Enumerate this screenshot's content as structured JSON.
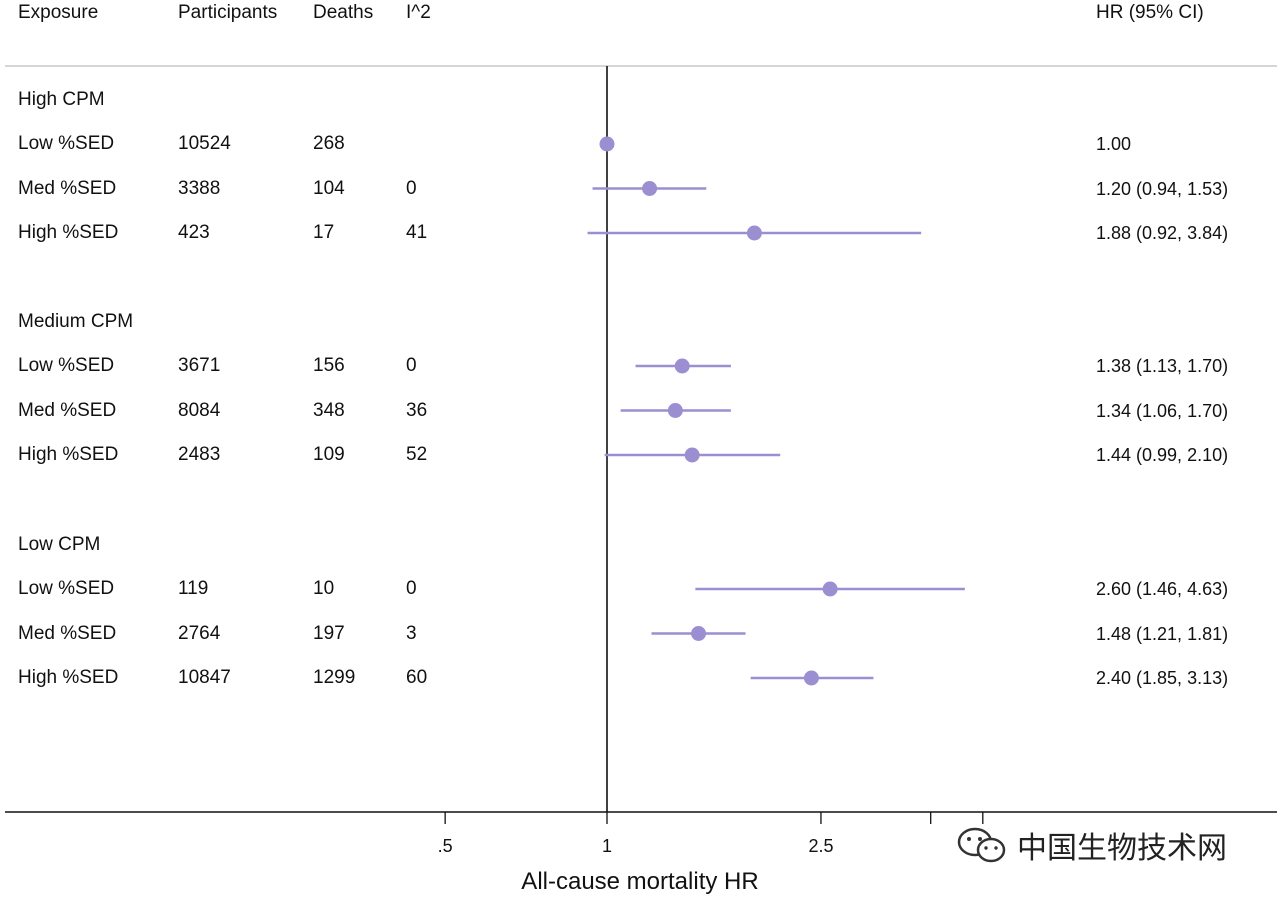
{
  "columns": {
    "exposure": "Exposure",
    "participants": "Participants",
    "deaths": "Deaths",
    "i2": "I^2",
    "hr": "HR (95% CI)"
  },
  "groups": [
    {
      "label": "High CPM",
      "rows": [
        {
          "exposure": "Low %SED",
          "participants": "10524",
          "deaths": "268",
          "i2": "",
          "hr_text": "1.00"
        },
        {
          "exposure": "Med %SED",
          "participants": "3388",
          "deaths": "104",
          "i2": "0",
          "hr_text": "1.20 (0.94, 1.53)"
        },
        {
          "exposure": "High %SED",
          "participants": "423",
          "deaths": "17",
          "i2": "41",
          "hr_text": "1.88 (0.92, 3.84)"
        }
      ]
    },
    {
      "label": "Medium CPM",
      "rows": [
        {
          "exposure": "Low %SED",
          "participants": "3671",
          "deaths": "156",
          "i2": "0",
          "hr_text": "1.38 (1.13, 1.70)"
        },
        {
          "exposure": "Med %SED",
          "participants": "8084",
          "deaths": "348",
          "i2": "36",
          "hr_text": "1.34 (1.06, 1.70)"
        },
        {
          "exposure": "High %SED",
          "participants": "2483",
          "deaths": "109",
          "i2": "52",
          "hr_text": "1.44 (0.99, 2.10)"
        }
      ]
    },
    {
      "label": "Low CPM",
      "rows": [
        {
          "exposure": "Low %SED",
          "participants": "119",
          "deaths": "10",
          "i2": "0",
          "hr_text": "2.60 (1.46, 4.63)"
        },
        {
          "exposure": "Med %SED",
          "participants": "2764",
          "deaths": "197",
          "i2": "3",
          "hr_text": "1.48 (1.21, 1.81)"
        },
        {
          "exposure": "High %SED",
          "participants": "10847",
          "deaths": "1299",
          "i2": "60",
          "hr_text": "2.40 (1.85, 3.13)"
        }
      ]
    }
  ],
  "chart_data": {
    "type": "forest",
    "xlabel": "All-cause mortality HR",
    "x_scale": "log",
    "x_ticks": [
      {
        "value": 0.5,
        "label": ".5"
      },
      {
        "value": 1,
        "label": "1"
      },
      {
        "value": 2.5,
        "label": "2.5"
      },
      {
        "value": 4,
        "label": ""
      },
      {
        "value": 5,
        "label": ""
      }
    ],
    "xlim": [
      0.4,
      6
    ],
    "reference_line": 1,
    "marker_color": "#9b8fd2",
    "points": [
      {
        "group": "High CPM",
        "exposure": "Low %SED",
        "hr": 1.0,
        "lo": 1.0,
        "hi": 1.0
      },
      {
        "group": "High CPM",
        "exposure": "Med %SED",
        "hr": 1.2,
        "lo": 0.94,
        "hi": 1.53
      },
      {
        "group": "High CPM",
        "exposure": "High %SED",
        "hr": 1.88,
        "lo": 0.92,
        "hi": 3.84
      },
      {
        "group": "Medium CPM",
        "exposure": "Low %SED",
        "hr": 1.38,
        "lo": 1.13,
        "hi": 1.7
      },
      {
        "group": "Medium CPM",
        "exposure": "Med %SED",
        "hr": 1.34,
        "lo": 1.06,
        "hi": 1.7
      },
      {
        "group": "Medium CPM",
        "exposure": "High %SED",
        "hr": 1.44,
        "lo": 0.99,
        "hi": 2.1
      },
      {
        "group": "Low CPM",
        "exposure": "Low %SED",
        "hr": 2.6,
        "lo": 1.46,
        "hi": 4.63
      },
      {
        "group": "Low CPM",
        "exposure": "Med %SED",
        "hr": 1.48,
        "lo": 1.21,
        "hi": 1.81
      },
      {
        "group": "Low CPM",
        "exposure": "High %SED",
        "hr": 2.4,
        "lo": 1.85,
        "hi": 3.13
      }
    ]
  },
  "watermark": {
    "icon": "wechat-icon",
    "text": "中国生物技术网"
  }
}
